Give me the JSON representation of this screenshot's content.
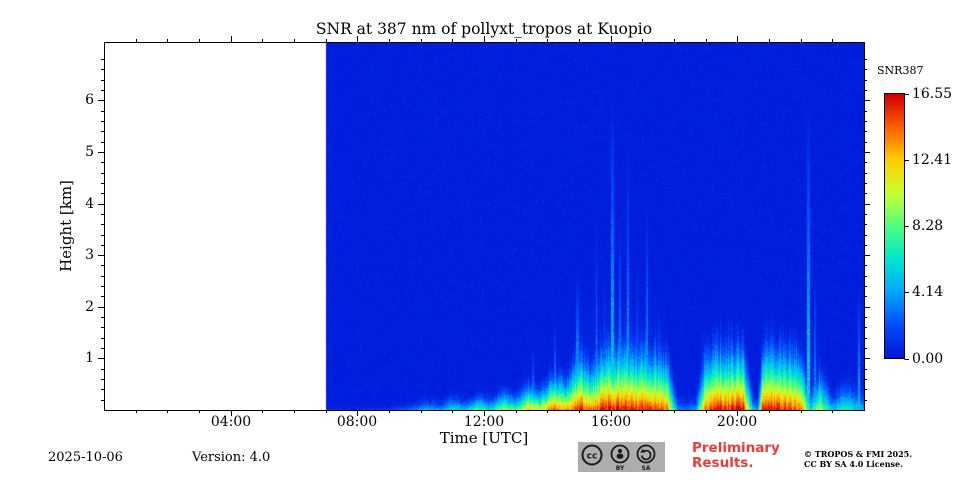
{
  "chart_data": {
    "type": "heatmap",
    "title": "SNR at 387 nm of pollyxt_tropos at Kuopio",
    "xlabel": "Time [UTC]",
    "ylabel": "Height [km]",
    "x_axis": {
      "range_hours": [
        0,
        24
      ],
      "major_tick_hours": [
        4,
        8,
        12,
        16,
        20
      ],
      "major_tick_labels": [
        "04:00",
        "08:00",
        "12:00",
        "16:00",
        "20:00"
      ],
      "minor_tick_step_hours": 1
    },
    "y_axis": {
      "range_km": [
        0,
        7.13
      ],
      "major_ticks_km": [
        1,
        2,
        3,
        4,
        5,
        6
      ],
      "minor_tick_step_km": 0.2
    },
    "colorbar": {
      "label": "SNR387",
      "tick_labels": [
        "16.55",
        "12.41",
        "8.28",
        "4.14",
        "0.00"
      ],
      "vmin": 0,
      "vmax": 16.55,
      "colormap": "jet"
    },
    "no_data_before_hour": 7.0,
    "no_data_color": "#ffffff",
    "background_snr": 0.25,
    "colormap_stops": [
      [
        0.0,
        "#0018d8"
      ],
      [
        0.125,
        "#0050ff"
      ],
      [
        0.25,
        "#00a8ff"
      ],
      [
        0.375,
        "#00e8d0"
      ],
      [
        0.5,
        "#50ff80"
      ],
      [
        0.625,
        "#c8ff30"
      ],
      [
        0.75,
        "#ffd000"
      ],
      [
        0.875,
        "#ff6000"
      ],
      [
        1.0,
        "#d00000"
      ]
    ],
    "boundary_layer": {
      "hours": [
        7.0,
        9.0,
        9.8,
        10.2,
        10.6,
        11.0,
        11.4,
        11.8,
        12.2,
        12.6,
        13.0,
        13.4,
        13.8,
        14.2,
        14.6,
        15.0,
        15.4,
        15.8,
        16.2,
        16.6,
        17.0,
        17.4,
        17.8,
        18.1,
        18.4,
        18.7,
        19.0,
        19.4,
        19.8,
        20.2,
        20.5,
        20.65,
        20.8,
        21.2,
        21.6,
        22.0,
        22.3,
        22.6,
        23.0,
        23.4,
        23.8,
        24.0
      ],
      "top_km": [
        0.06,
        0.1,
        0.22,
        0.32,
        0.24,
        0.42,
        0.3,
        0.48,
        0.36,
        0.58,
        0.46,
        0.82,
        0.62,
        1.05,
        0.85,
        1.6,
        1.2,
        1.8,
        1.7,
        1.85,
        1.75,
        1.7,
        1.5,
        0.4,
        0.3,
        0.4,
        1.6,
        1.8,
        1.75,
        1.8,
        0.4,
        0.35,
        1.7,
        1.8,
        1.7,
        1.6,
        0.6,
        1.2,
        0.5,
        0.8,
        0.6,
        0.5
      ],
      "surface_snr": [
        0.8,
        1.5,
        3.0,
        5.0,
        4.0,
        6.5,
        5.0,
        8.0,
        6.0,
        10.0,
        8.0,
        13.0,
        11.0,
        15.0,
        13.0,
        16.0,
        14.0,
        16.3,
        16.0,
        16.3,
        16.0,
        15.5,
        14.0,
        4.0,
        3.0,
        4.0,
        15.0,
        16.2,
        16.0,
        16.2,
        5.0,
        4.0,
        16.0,
        16.2,
        15.5,
        14.0,
        6.0,
        10.0,
        5.0,
        7.0,
        5.5,
        5.0
      ]
    },
    "spikes": [
      {
        "hour": 13.55,
        "width_h": 0.06,
        "top_km": 1.3,
        "snr": 5
      },
      {
        "hour": 14.25,
        "width_h": 0.06,
        "top_km": 1.9,
        "snr": 5
      },
      {
        "hour": 14.95,
        "width_h": 0.07,
        "top_km": 2.9,
        "snr": 6
      },
      {
        "hour": 15.55,
        "width_h": 0.05,
        "top_km": 4.3,
        "snr": 5
      },
      {
        "hour": 15.8,
        "width_h": 0.04,
        "top_km": 3.2,
        "snr": 4
      },
      {
        "hour": 16.05,
        "width_h": 0.09,
        "top_km": 6.6,
        "snr": 6
      },
      {
        "hour": 16.3,
        "width_h": 0.05,
        "top_km": 4.0,
        "snr": 5
      },
      {
        "hour": 16.55,
        "width_h": 0.07,
        "top_km": 5.6,
        "snr": 5
      },
      {
        "hour": 16.85,
        "width_h": 0.05,
        "top_km": 3.4,
        "snr": 4
      },
      {
        "hour": 17.15,
        "width_h": 0.06,
        "top_km": 4.4,
        "snr": 5
      },
      {
        "hour": 17.5,
        "width_h": 0.04,
        "top_km": 2.4,
        "snr": 4
      },
      {
        "hour": 18.9,
        "width_h": 0.04,
        "top_km": 2.0,
        "snr": 4
      },
      {
        "hour": 22.25,
        "width_h": 0.08,
        "top_km": 6.4,
        "snr": 6
      },
      {
        "hour": 22.45,
        "width_h": 0.04,
        "top_km": 3.0,
        "snr": 4
      },
      {
        "hour": 23.85,
        "width_h": 0.05,
        "top_km": 2.6,
        "snr": 5
      },
      {
        "hour": 16.3,
        "width_h": 2.6,
        "top_km": 3.2,
        "snr": 0.9
      },
      {
        "hour": 22.3,
        "width_h": 0.5,
        "top_km": 3.0,
        "snr": 0.8
      }
    ]
  },
  "footer": {
    "date": "2025-10-06",
    "version": "Version: 4.0",
    "preliminary": "Preliminary Results.",
    "copyright_line1": "© TROPOS & FMI 2025.",
    "copyright_line2": "CC BY SA 4.0 License.",
    "cc_by_label": "BY",
    "cc_sa_label": "SA"
  }
}
